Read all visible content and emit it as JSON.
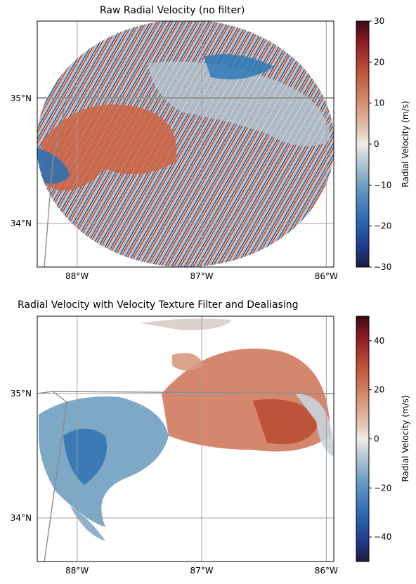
{
  "chart_data": [
    {
      "type": "heatmap",
      "title": "Raw Radial Velocity (no filter)",
      "description": "radar PPI map",
      "x_ticks": [
        "88°W",
        "87°W",
        "86°W"
      ],
      "y_ticks": [
        "35°N",
        "34°N"
      ],
      "x_tick_values": [
        -88,
        -87,
        -86
      ],
      "y_tick_values": [
        35,
        34
      ],
      "xlim": [
        -88.32,
        -85.94
      ],
      "ylim": [
        33.65,
        35.62
      ],
      "grid": true,
      "colorbar": {
        "label": "Radial Velocity (m/s)",
        "range": [
          -30,
          30
        ],
        "ticks": [
          "30",
          "20",
          "10",
          "0",
          "−10",
          "−20",
          "−30"
        ],
        "tick_values": [
          30,
          20,
          10,
          0,
          -10,
          -20,
          -30
        ]
      },
      "colormap": "balance",
      "colors": {
        "low": "#1b1c3f",
        "mid": "#f1ece7",
        "high": "#3c0912",
        "border": "#8c8c8c"
      }
    },
    {
      "type": "heatmap",
      "title": "Radial Velocity with Velocity Texture Filter and Dealiasing",
      "description": "filtered, dealiased radar PPI map",
      "x_ticks": [
        "88°W",
        "87°W",
        "86°W"
      ],
      "y_ticks": [
        "35°N",
        "34°N"
      ],
      "x_tick_values": [
        -88,
        -87,
        -86
      ],
      "y_tick_values": [
        35,
        34
      ],
      "xlim": [
        -88.32,
        -85.94
      ],
      "ylim": [
        33.65,
        35.62
      ],
      "grid": true,
      "colorbar": {
        "label": "Radial Velocity (m/s)",
        "range": [
          -50,
          50
        ],
        "ticks": [
          "40",
          "20",
          "0",
          "−20",
          "−40"
        ],
        "tick_values": [
          40,
          20,
          0,
          -20,
          -40
        ]
      },
      "colormap": "balance",
      "colors": {
        "low": "#1b1c3f",
        "mid": "#f1ece7",
        "high": "#3c0912",
        "border": "#8c8c8c"
      }
    }
  ]
}
